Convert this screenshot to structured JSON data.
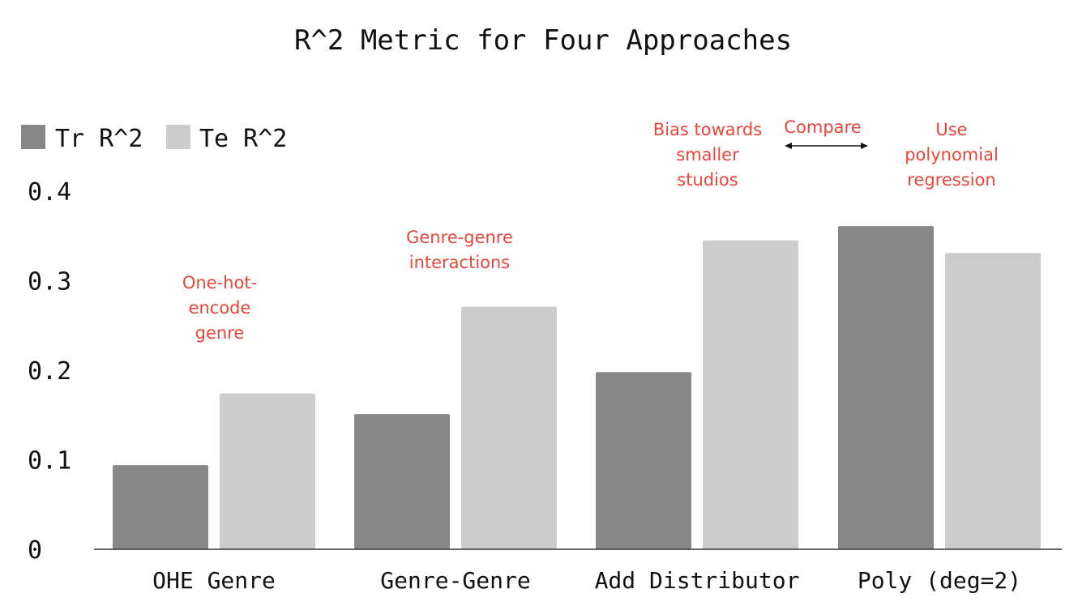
{
  "chart_data": {
    "type": "bar",
    "title": "R^2 Metric for Four Approaches",
    "categories": [
      "OHE Genre",
      "Genre-Genre",
      "Add Distributor",
      "Poly (deg=2)"
    ],
    "series": [
      {
        "name": "Tr R^2",
        "color": "#878787",
        "values": [
          0.094,
          0.151,
          0.198,
          0.361
        ]
      },
      {
        "name": "Te R^2",
        "color": "#cccccc",
        "values": [
          0.174,
          0.271,
          0.345,
          0.331
        ]
      }
    ],
    "ylim": [
      0,
      0.4
    ],
    "yticks": [
      {
        "value": 0,
        "label": "0"
      },
      {
        "value": 0.1,
        "label": "0.1"
      },
      {
        "value": 0.2,
        "label": "0.2"
      },
      {
        "value": 0.3,
        "label": "0.3"
      },
      {
        "value": 0.4,
        "label": "0.4"
      }
    ],
    "grid": false,
    "legend": "top-left",
    "annotation_color": "#e8463a",
    "annotations": [
      {
        "id": "ohe",
        "lines": [
          "One-hot-",
          "encode",
          "genre"
        ]
      },
      {
        "id": "genre",
        "lines": [
          "Genre-genre",
          "interactions"
        ]
      },
      {
        "id": "bias",
        "lines": [
          "Bias towards",
          "smaller",
          "studios"
        ]
      },
      {
        "id": "compare",
        "lines": [
          "Compare"
        ]
      },
      {
        "id": "poly",
        "lines": [
          "Use",
          "polynomial",
          "regression"
        ]
      }
    ]
  }
}
